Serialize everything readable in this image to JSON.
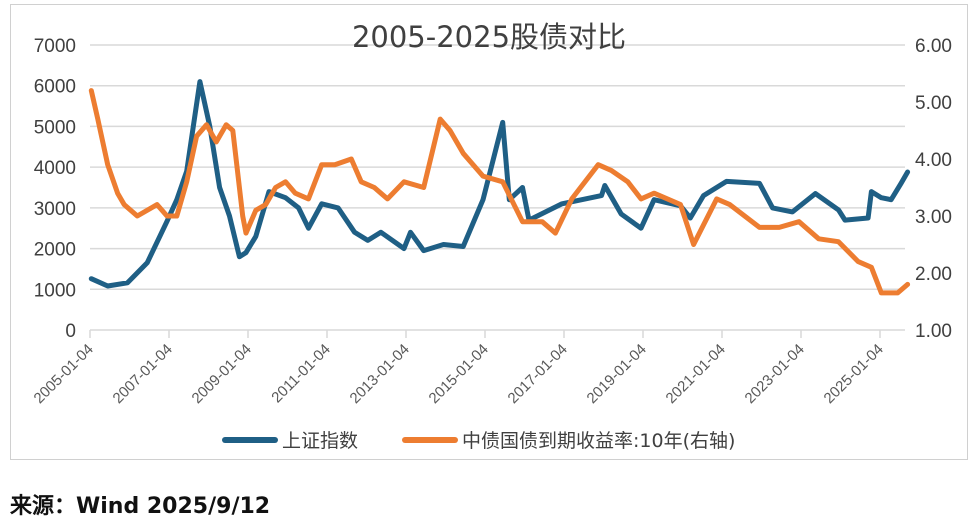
{
  "chart_data": {
    "type": "line",
    "title": "2005-2025股债对比",
    "x_tick_labels": [
      "2005-01-04",
      "2007-01-04",
      "2009-01-04",
      "2011-01-04",
      "2013-01-04",
      "2015-01-04",
      "2017-01-04",
      "2019-01-04",
      "2021-01-04",
      "2023-01-04",
      "2025-01-04"
    ],
    "y_left": {
      "range": [
        0,
        7000
      ],
      "ticks": [
        "0",
        "1000",
        "2000",
        "3000",
        "4000",
        "5000",
        "6000",
        "7000"
      ]
    },
    "y_right": {
      "range": [
        1.0,
        6.0
      ],
      "ticks": [
        "1.00",
        "2.00",
        "3.00",
        "4.00",
        "5.00",
        "6.00"
      ]
    },
    "grid": true,
    "legend_placement": "bottom",
    "series": [
      {
        "name": "上证指数",
        "axis": "left",
        "color": "#1f5f85",
        "points": [
          [
            "2005-01",
            1260
          ],
          [
            "2005-06",
            1080
          ],
          [
            "2005-12",
            1160
          ],
          [
            "2006-06",
            1650
          ],
          [
            "2006-12",
            2670
          ],
          [
            "2007-03",
            3200
          ],
          [
            "2007-06",
            3900
          ],
          [
            "2007-10",
            6100
          ],
          [
            "2008-01",
            5000
          ],
          [
            "2008-04",
            3500
          ],
          [
            "2008-07",
            2800
          ],
          [
            "2008-10",
            1800
          ],
          [
            "2008-12",
            1900
          ],
          [
            "2009-03",
            2300
          ],
          [
            "2009-07",
            3400
          ],
          [
            "2009-12",
            3250
          ],
          [
            "2010-04",
            3000
          ],
          [
            "2010-07",
            2500
          ],
          [
            "2010-11",
            3100
          ],
          [
            "2011-04",
            3000
          ],
          [
            "2011-09",
            2400
          ],
          [
            "2012-01",
            2200
          ],
          [
            "2012-05",
            2400
          ],
          [
            "2012-12",
            2000
          ],
          [
            "2013-02",
            2400
          ],
          [
            "2013-06",
            1950
          ],
          [
            "2013-12",
            2100
          ],
          [
            "2014-06",
            2050
          ],
          [
            "2014-12",
            3200
          ],
          [
            "2015-06",
            5100
          ],
          [
            "2015-08",
            3200
          ],
          [
            "2015-12",
            3500
          ],
          [
            "2016-02",
            2700
          ],
          [
            "2016-12",
            3100
          ],
          [
            "2017-12",
            3300
          ],
          [
            "2018-01",
            3550
          ],
          [
            "2018-06",
            2850
          ],
          [
            "2018-12",
            2500
          ],
          [
            "2019-04",
            3200
          ],
          [
            "2019-12",
            3050
          ],
          [
            "2020-03",
            2750
          ],
          [
            "2020-07",
            3300
          ],
          [
            "2021-02",
            3650
          ],
          [
            "2021-12",
            3600
          ],
          [
            "2022-04",
            3000
          ],
          [
            "2022-10",
            2900
          ],
          [
            "2023-05",
            3350
          ],
          [
            "2023-12",
            2950
          ],
          [
            "2024-02",
            2700
          ],
          [
            "2024-09",
            2750
          ],
          [
            "2024-10",
            3400
          ],
          [
            "2025-01",
            3250
          ],
          [
            "2025-04",
            3200
          ],
          [
            "2025-07",
            3600
          ],
          [
            "2025-09",
            3880
          ]
        ]
      },
      {
        "name": "中债国债到期收益率:10年(右轴)",
        "axis": "right",
        "color": "#ed7d31",
        "points": [
          [
            "2005-01",
            5.2
          ],
          [
            "2005-03",
            4.7
          ],
          [
            "2005-06",
            3.9
          ],
          [
            "2005-09",
            3.4
          ],
          [
            "2005-11",
            3.2
          ],
          [
            "2006-03",
            3.0
          ],
          [
            "2006-09",
            3.2
          ],
          [
            "2006-12",
            3.0
          ],
          [
            "2007-03",
            3.0
          ],
          [
            "2007-06",
            3.6
          ],
          [
            "2007-09",
            4.4
          ],
          [
            "2007-12",
            4.6
          ],
          [
            "2008-03",
            4.3
          ],
          [
            "2008-06",
            4.6
          ],
          [
            "2008-08",
            4.5
          ],
          [
            "2008-11",
            3.0
          ],
          [
            "2008-12",
            2.7
          ],
          [
            "2009-03",
            3.1
          ],
          [
            "2009-06",
            3.2
          ],
          [
            "2009-09",
            3.5
          ],
          [
            "2009-12",
            3.6
          ],
          [
            "2010-03",
            3.4
          ],
          [
            "2010-07",
            3.3
          ],
          [
            "2010-11",
            3.9
          ],
          [
            "2011-03",
            3.9
          ],
          [
            "2011-08",
            4.0
          ],
          [
            "2011-11",
            3.6
          ],
          [
            "2012-03",
            3.5
          ],
          [
            "2012-07",
            3.3
          ],
          [
            "2012-12",
            3.6
          ],
          [
            "2013-06",
            3.5
          ],
          [
            "2013-11",
            4.7
          ],
          [
            "2014-02",
            4.5
          ],
          [
            "2014-06",
            4.1
          ],
          [
            "2014-12",
            3.7
          ],
          [
            "2015-06",
            3.6
          ],
          [
            "2015-12",
            2.9
          ],
          [
            "2016-06",
            2.9
          ],
          [
            "2016-10",
            2.7
          ],
          [
            "2017-03",
            3.3
          ],
          [
            "2017-11",
            3.9
          ],
          [
            "2018-03",
            3.8
          ],
          [
            "2018-08",
            3.6
          ],
          [
            "2018-12",
            3.3
          ],
          [
            "2019-04",
            3.4
          ],
          [
            "2019-12",
            3.2
          ],
          [
            "2020-04",
            2.5
          ],
          [
            "2020-11",
            3.3
          ],
          [
            "2021-03",
            3.2
          ],
          [
            "2021-12",
            2.8
          ],
          [
            "2022-06",
            2.8
          ],
          [
            "2022-12",
            2.9
          ],
          [
            "2023-06",
            2.6
          ],
          [
            "2023-12",
            2.55
          ],
          [
            "2024-06",
            2.2
          ],
          [
            "2024-10",
            2.1
          ],
          [
            "2025-01",
            1.65
          ],
          [
            "2025-06",
            1.65
          ],
          [
            "2025-09",
            1.8
          ]
        ]
      }
    ]
  },
  "source": "来源：Wind 2025/9/12"
}
